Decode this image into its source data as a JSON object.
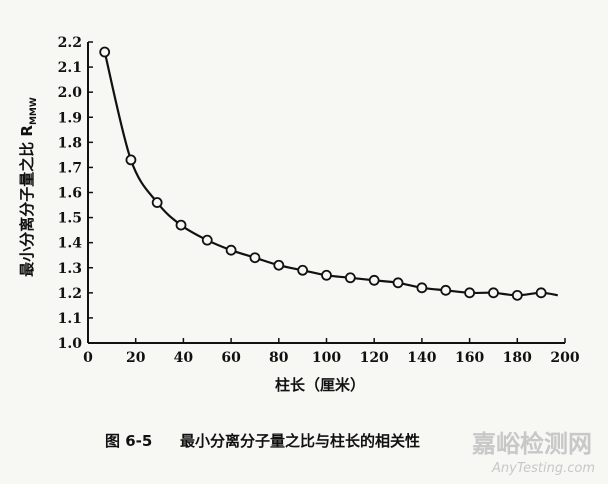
{
  "chart_data": {
    "type": "scatter",
    "title": "",
    "xlabel": "柱长（厘米）",
    "ylabel": "最小分离分子量之比 R",
    "ylabel_subscript": "MMW",
    "xlim": [
      0,
      200
    ],
    "ylim": [
      1.0,
      2.2
    ],
    "xticks": [
      "0",
      "20",
      "40",
      "60",
      "80",
      "100",
      "120",
      "140",
      "160",
      "180",
      "200"
    ],
    "yticks": [
      "1.0",
      "1.1",
      "1.2",
      "1.3",
      "1.4",
      "1.5",
      "1.6",
      "1.7",
      "1.8",
      "1.9",
      "2.0",
      "2.1",
      "2.2"
    ],
    "grid": false,
    "series": [
      {
        "x": [
          7,
          18,
          29,
          39,
          50,
          60,
          70,
          80,
          90,
          100,
          110,
          120,
          130,
          140,
          150,
          160,
          170,
          180,
          190
        ],
        "y": [
          2.16,
          1.73,
          1.56,
          1.47,
          1.41,
          1.37,
          1.34,
          1.31,
          1.29,
          1.27,
          1.26,
          1.25,
          1.24,
          1.22,
          1.21,
          1.2,
          1.2,
          1.19,
          1.2
        ]
      }
    ],
    "fit_curve": true
  },
  "caption": {
    "label": "图 6-5",
    "text": "最小分离分子量之比与柱长的相关性"
  },
  "watermark": {
    "main": "嘉峪检测网",
    "sub": "AnyTesting.com"
  }
}
